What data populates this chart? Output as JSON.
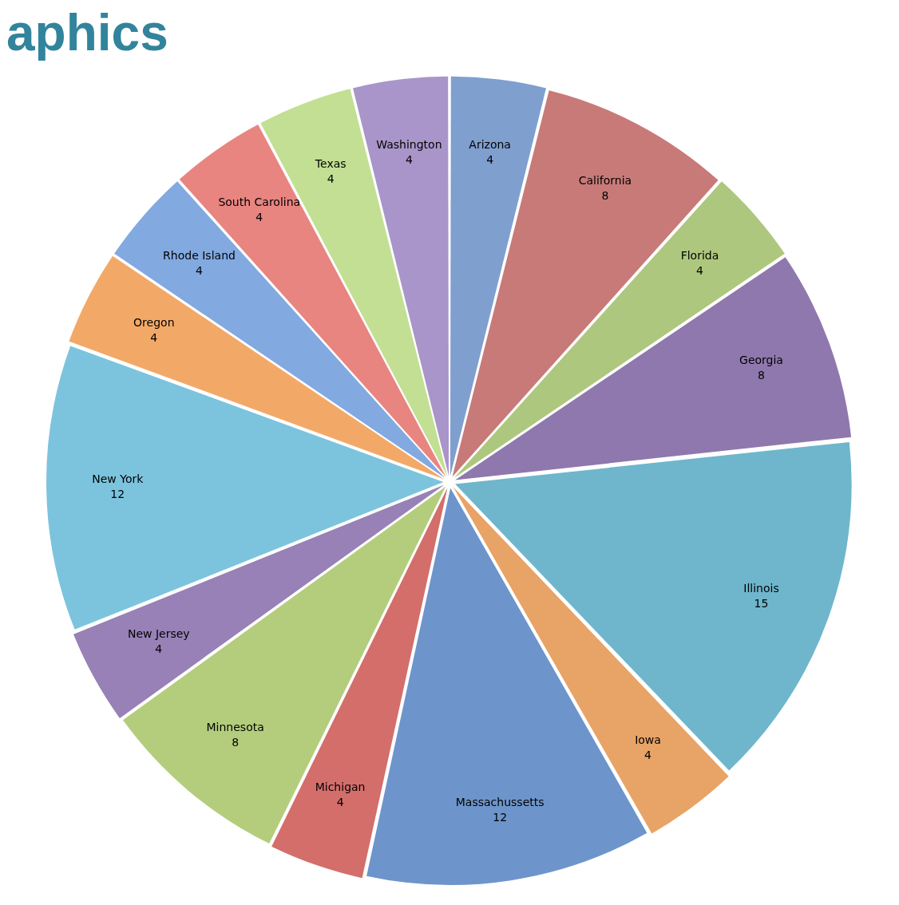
{
  "chart_data": {
    "type": "pie",
    "title": "aphics",
    "categories": [
      "Arizona",
      "California",
      "Florida",
      "Georgia",
      "Illinois",
      "Iowa",
      "Massachussetts",
      "Michigan",
      "Minnesota",
      "New Jersey",
      "New York",
      "Oregon",
      "Rhode Island",
      "South Carolina",
      "Texas",
      "Washington"
    ],
    "values": [
      4,
      8,
      4,
      8,
      15,
      4,
      12,
      4,
      8,
      4,
      12,
      4,
      4,
      4,
      4,
      4
    ],
    "colors": [
      "#7f9fcf",
      "#c87a78",
      "#aec77e",
      "#8f78ad",
      "#6fb6cc",
      "#e8a366",
      "#6d95cb",
      "#d36e6b",
      "#b4cd7d",
      "#9781b6",
      "#7cc4dd",
      "#f2a968",
      "#82a9e0",
      "#e88580",
      "#c2df93",
      "#a995c9"
    ],
    "data_labels": true,
    "legend": false
  }
}
